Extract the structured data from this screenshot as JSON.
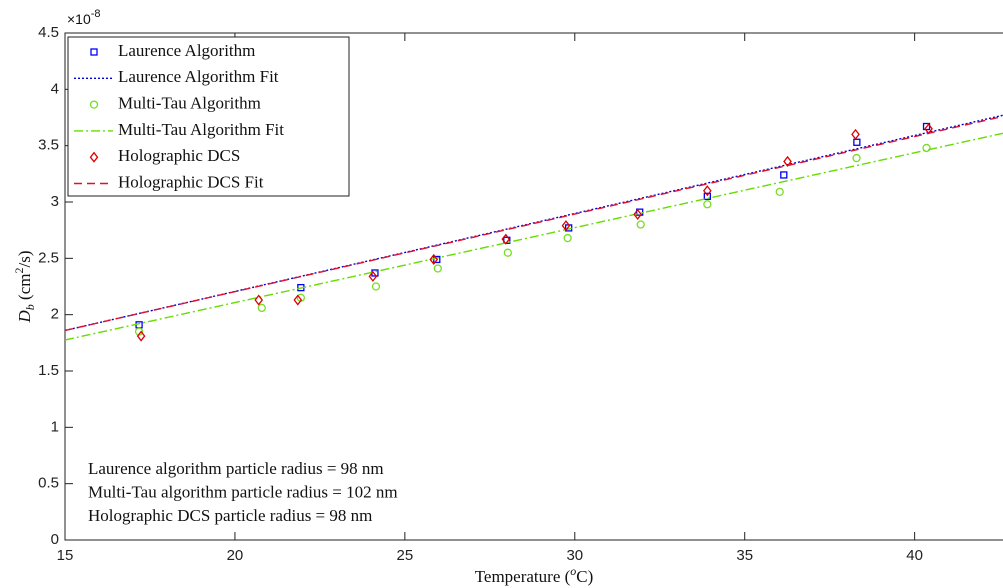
{
  "chart_data": {
    "type": "scatter",
    "x_label": [
      "Temperature (",
      "o",
      "C)"
    ],
    "y_label": [
      "D",
      "b",
      " (cm",
      "2",
      "/s)"
    ],
    "y_multiplier": [
      "×10",
      "-8"
    ],
    "xlim": [
      15,
      42.6
    ],
    "ylim": [
      0,
      4.5
    ],
    "xticks": [
      15,
      20,
      25,
      30,
      35,
      40
    ],
    "yticks": [
      0,
      0.5,
      1,
      1.5,
      2,
      2.5,
      3,
      3.5,
      4,
      4.5
    ],
    "legend": "upper-left",
    "series": [
      {
        "name": "Laurence Algorithm",
        "kind": "points",
        "marker": "square",
        "color": "#0000ff",
        "x": [
          17.18,
          21.94,
          24.12,
          25.94,
          28.0,
          29.82,
          31.91,
          33.9,
          36.15,
          38.3,
          40.35
        ],
        "values": [
          1.91,
          2.24,
          2.37,
          2.49,
          2.66,
          2.77,
          2.91,
          3.05,
          3.24,
          3.53,
          3.67
        ]
      },
      {
        "name": "Laurence Algorithm Fit",
        "kind": "line",
        "dash": "2 2",
        "color": "#0000cc",
        "x": [
          15,
          42.6
        ],
        "values": [
          1.86,
          3.77
        ]
      },
      {
        "name": "Multi-Tau Algorithm",
        "kind": "points",
        "marker": "circle",
        "color": "#77dd22",
        "x": [
          17.18,
          20.79,
          21.94,
          24.15,
          25.97,
          28.03,
          29.79,
          31.94,
          33.9,
          36.03,
          38.29,
          40.35
        ],
        "values": [
          1.85,
          2.06,
          2.15,
          2.25,
          2.41,
          2.55,
          2.68,
          2.8,
          2.98,
          3.09,
          3.39,
          3.48
        ]
      },
      {
        "name": "Multi-Tau Algorithm Fit",
        "kind": "line",
        "dash": "9 3 2 3",
        "color": "#66dd00",
        "x": [
          15,
          42.6
        ],
        "values": [
          1.775,
          3.61
        ]
      },
      {
        "name": "Holographic DCS",
        "kind": "points",
        "marker": "diamond",
        "color": "#dd0000",
        "x": [
          17.24,
          20.7,
          21.85,
          24.06,
          25.85,
          27.97,
          29.74,
          31.85,
          33.9,
          36.26,
          38.26,
          40.41
        ],
        "values": [
          1.81,
          2.13,
          2.13,
          2.34,
          2.49,
          2.67,
          2.79,
          2.89,
          3.1,
          3.36,
          3.6,
          3.65
        ]
      },
      {
        "name": "Holographic DCS Fit",
        "kind": "line",
        "dash": "8 5",
        "color": "#dd1133",
        "x": [
          15,
          42.6
        ],
        "values": [
          1.86,
          3.76
        ]
      }
    ],
    "annotations": [
      "Laurence algorithm particle radius = 98 nm",
      "Multi-Tau algorithm particle radius = 102 nm",
      "Holographic DCS particle radius = 98 nm"
    ]
  }
}
